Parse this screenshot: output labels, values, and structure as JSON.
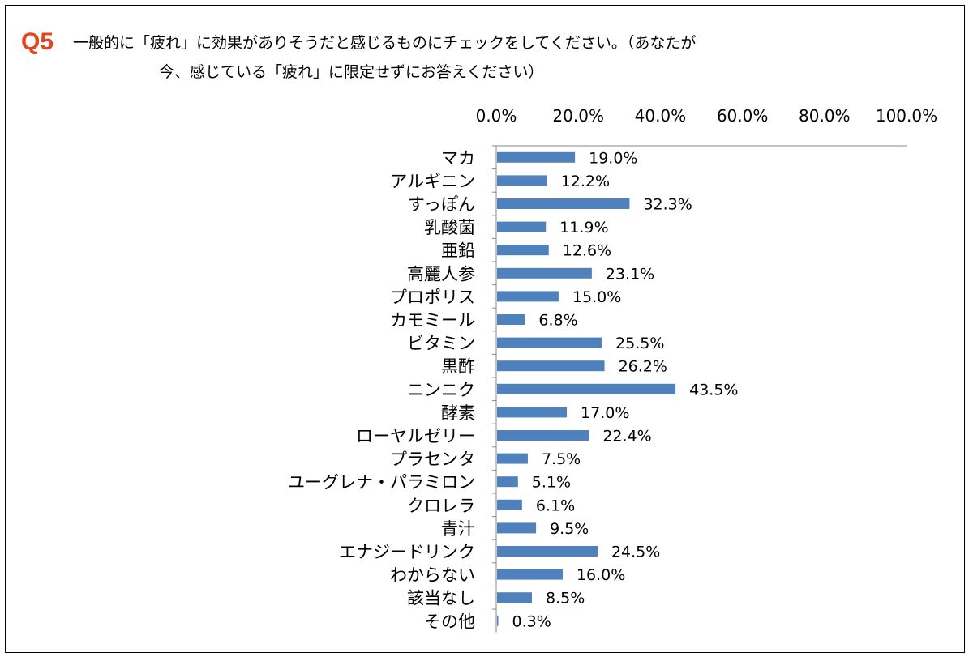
{
  "question": {
    "number": "Q5",
    "line1": "一般的に「疲れ」に効果がありそうだと感じるものにチェックをしてください。（あなたが",
    "line2": "今、感じている「疲れ」に限定せずにお答えください）"
  },
  "colors": {
    "bar": "#4f81bd",
    "accent": "#e2461d",
    "axis": "#888888"
  },
  "chart_data": {
    "type": "bar",
    "orientation": "horizontal",
    "title": "",
    "xlim": [
      0,
      100
    ],
    "ticks": [
      "0.0%",
      "20.0%",
      "40.0%",
      "60.0%",
      "80.0%",
      "100.0%"
    ],
    "tick_values": [
      0,
      20,
      40,
      60,
      80,
      100
    ],
    "categories": [
      "マカ",
      "アルギニン",
      "すっぽん",
      "乳酸菌",
      "亜鉛",
      "高麗人参",
      "プロポリス",
      "カモミール",
      "ビタミン",
      "黒酢",
      "ニンニク",
      "酵素",
      "ローヤルゼリー",
      "プラセンタ",
      "ユーグレナ・パラミロン",
      "クロレラ",
      "青汁",
      "エナジードリンク",
      "わからない",
      "該当なし",
      "その他"
    ],
    "values": [
      19.0,
      12.2,
      32.3,
      11.9,
      12.6,
      23.1,
      15.0,
      6.8,
      25.5,
      26.2,
      43.5,
      17.0,
      22.4,
      7.5,
      5.1,
      6.1,
      9.5,
      24.5,
      16.0,
      8.5,
      0.3
    ],
    "labels": [
      "19.0%",
      "12.2%",
      "32.3%",
      "11.9%",
      "12.6%",
      "23.1%",
      "15.0%",
      "6.8%",
      "25.5%",
      "26.2%",
      "43.5%",
      "17.0%",
      "22.4%",
      "7.5%",
      "5.1%",
      "6.1%",
      "9.5%",
      "24.5%",
      "16.0%",
      "8.5%",
      "0.3%"
    ],
    "axis_position": "top",
    "grid": false
  }
}
